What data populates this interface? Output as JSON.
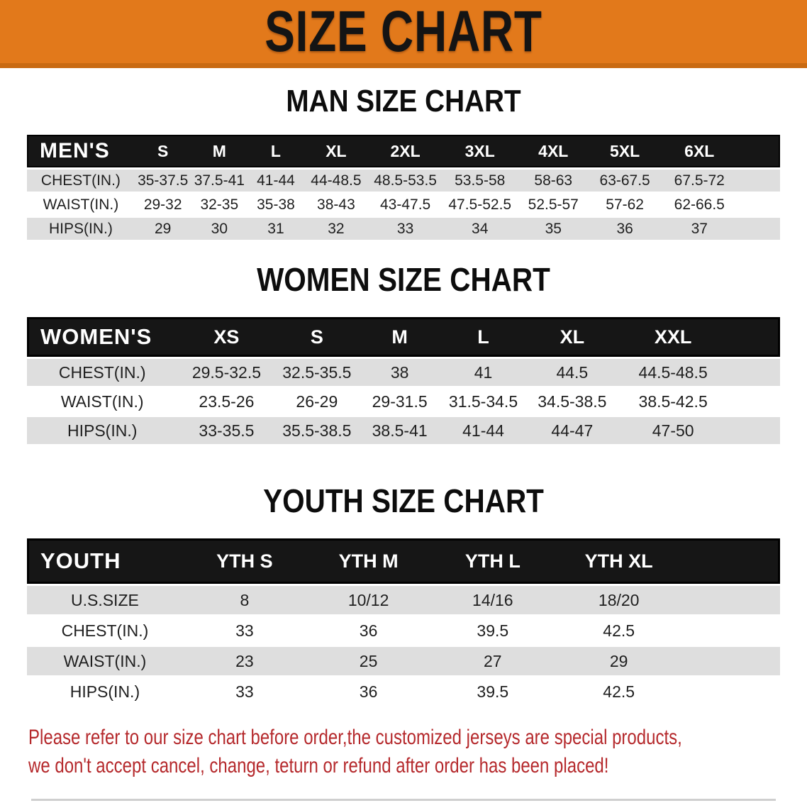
{
  "banner": {
    "title": "SIZE CHART"
  },
  "colors": {
    "banner-bg": "#e2791b",
    "banner-edge": "#c96a12",
    "banner-text": "#141414",
    "header-band": "#161616",
    "header-text": "#ffffff",
    "row-gray": "#dedede",
    "row-white": "#ffffff",
    "text-dark": "#1f1f1f",
    "disclaimer-red": "#b5292c"
  },
  "men": {
    "title": "MAN SIZE CHART",
    "header": [
      "MEN'S",
      "S",
      "M",
      "L",
      "XL",
      "2XL",
      "3XL",
      "4XL",
      "5XL",
      "6XL"
    ],
    "rows": [
      [
        "CHEST(IN.)",
        "35-37.5",
        "37.5-41",
        "41-44",
        "44-48.5",
        "48.5-53.5",
        "53.5-58",
        "58-63",
        "63-67.5",
        "67.5-72"
      ],
      [
        "WAIST(IN.)",
        "29-32",
        "32-35",
        "35-38",
        "38-43",
        "43-47.5",
        "47.5-52.5",
        "52.5-57",
        "57-62",
        "62-66.5"
      ],
      [
        "HIPS(IN.)",
        "29",
        "30",
        "31",
        "32",
        "33",
        "34",
        "35",
        "36",
        "37"
      ]
    ]
  },
  "women": {
    "title": "WOMEN SIZE CHART",
    "header": [
      "WOMEN'S",
      "XS",
      "S",
      "M",
      "L",
      "XL",
      "XXL"
    ],
    "rows": [
      [
        "CHEST(IN.)",
        "29.5-32.5",
        "32.5-35.5",
        "38",
        "41",
        "44.5",
        "44.5-48.5"
      ],
      [
        "WAIST(IN.)",
        "23.5-26",
        "26-29",
        "29-31.5",
        "31.5-34.5",
        "34.5-38.5",
        "38.5-42.5"
      ],
      [
        "HIPS(IN.)",
        "33-35.5",
        "35.5-38.5",
        "38.5-41",
        "41-44",
        "44-47",
        "47-50"
      ]
    ]
  },
  "youth": {
    "title": "YOUTH SIZE CHART",
    "header": [
      "YOUTH",
      "YTH S",
      "YTH M",
      "YTH L",
      "YTH XL"
    ],
    "rows": [
      [
        "U.S.SIZE",
        "8",
        "10/12",
        "14/16",
        "18/20"
      ],
      [
        "CHEST(IN.)",
        "33",
        "36",
        "39.5",
        "42.5"
      ],
      [
        "WAIST(IN.)",
        "23",
        "25",
        "27",
        "29"
      ],
      [
        "HIPS(IN.)",
        "33",
        "36",
        "39.5",
        "42.5"
      ]
    ]
  },
  "disclaimer": {
    "line1": "Please refer to our size chart before order,the customized jerseys are special products,",
    "line2": "we don't accept cancel, change, teturn or refund after order has been placed!"
  }
}
